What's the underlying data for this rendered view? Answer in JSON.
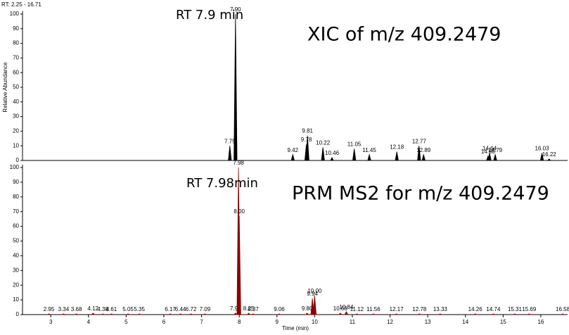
{
  "header": "RT: 2.25 - 16.71",
  "chart_data": [
    {
      "type": "chromatogram",
      "title": "XIC of m/z 409.2479",
      "annotation": "RT 7.9 min",
      "ylabel": "Relative Abundance",
      "color": "#000000",
      "xlim": [
        2.25,
        16.71
      ],
      "ylim": [
        0,
        100
      ],
      "yticks": [
        0,
        10,
        20,
        30,
        40,
        50,
        60,
        70,
        80,
        90,
        100
      ],
      "x": [
        7.75,
        7.9,
        9.42,
        9.78,
        9.81,
        10.22,
        10.46,
        11.05,
        11.45,
        12.18,
        12.77,
        12.89,
        14.6,
        14.64,
        14.79,
        16.03,
        16.22
      ],
      "peak_labels": [
        "7.75",
        "7.90",
        "9.42",
        "9.78",
        "9.81",
        "10.22",
        "10.46",
        "11.05",
        "11.45",
        "12.18",
        "12.77",
        "12.89",
        "14.60",
        "14.64",
        "14.79",
        "16.03",
        "16.22"
      ],
      "values": [
        10,
        100,
        4,
        11,
        17,
        9,
        2,
        8,
        4,
        6,
        10,
        4,
        3,
        5,
        4,
        5,
        1
      ]
    },
    {
      "type": "chromatogram",
      "title": "PRM MS2 for m/z 409.2479",
      "annotation": "RT 7.98min",
      "xlabel": "Time (min)",
      "color": "#8b0000",
      "xlim": [
        2.25,
        16.71
      ],
      "ylim": [
        0,
        100
      ],
      "yticks": [
        0,
        10,
        20,
        30,
        40,
        50,
        60,
        70,
        80,
        90,
        100
      ],
      "xticks": [
        3,
        4,
        5,
        6,
        7,
        8,
        9,
        10,
        11,
        12,
        13,
        14,
        15,
        16
      ],
      "x": [
        2.95,
        3.34,
        3.68,
        4.12,
        4.38,
        4.61,
        5.05,
        5.35,
        6.17,
        6.44,
        6.72,
        7.09,
        7.9,
        7.98,
        8.0,
        8.25,
        8.37,
        9.06,
        9.8,
        9.94,
        10.0,
        10.68,
        10.84,
        11.12,
        11.56,
        12.17,
        12.78,
        13.33,
        14.26,
        14.74,
        15.31,
        15.69,
        16.58
      ],
      "peak_labels": [
        "2.95",
        "3.34",
        "3.68",
        "4.12",
        "4.38",
        "4.61",
        "5.05",
        "5.35",
        "6.17",
        "6.44",
        "6.72",
        "7.09",
        "7.90",
        "7.98",
        "8.00",
        "8.25",
        "8.37",
        "9.06",
        "9.80",
        "9.94",
        "10.00",
        "10.68",
        "10.84",
        "11.12",
        "11.56",
        "12.17",
        "12.78",
        "13.33",
        "14.26",
        "14.74",
        "15.31",
        "15.69",
        "16.58"
      ],
      "values": [
        0.5,
        0.5,
        0.5,
        1,
        0.5,
        0.5,
        0.5,
        0.5,
        0.5,
        0.5,
        0.5,
        0.5,
        1,
        100,
        67,
        1,
        0.5,
        0.5,
        1,
        11,
        13,
        1,
        2,
        0.5,
        0.5,
        0.5,
        0.5,
        0.5,
        0.5,
        0.5,
        0.5,
        0.5,
        0.5
      ]
    }
  ]
}
